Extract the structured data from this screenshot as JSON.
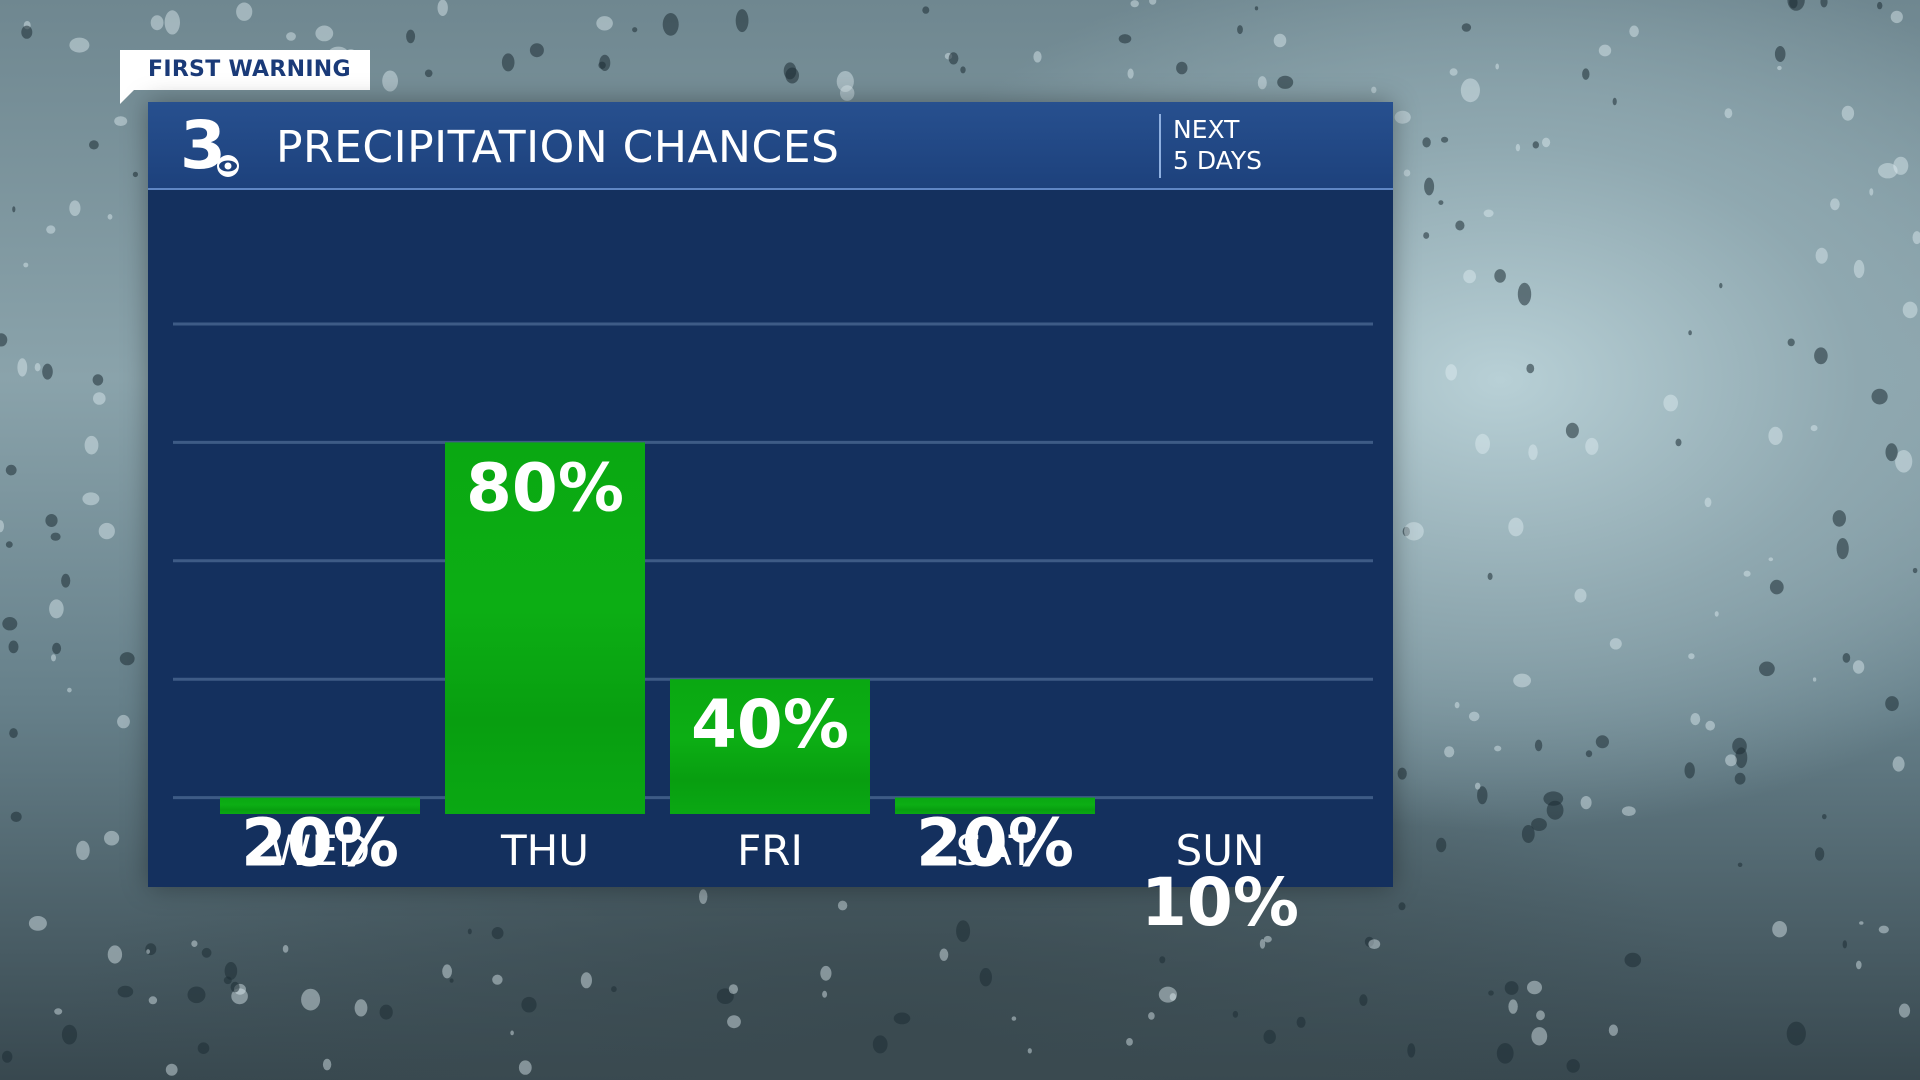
{
  "badge": {
    "label": "FIRST WARNING"
  },
  "header": {
    "logo_text": "3",
    "title": "PRECIPITATION CHANCES",
    "subtitle_line1": "NEXT",
    "subtitle_line2": "5 DAYS"
  },
  "colors": {
    "panel": "#14305e",
    "header": "#27508f",
    "bar": "#0aa313",
    "text": "#ffffff",
    "badge_text": "#1a3a78"
  },
  "chart_data": {
    "type": "bar",
    "categories": [
      "WED",
      "THU",
      "FRI",
      "SAT",
      "SUN"
    ],
    "values": [
      20,
      80,
      40,
      20,
      10
    ],
    "value_labels": [
      "20%",
      "80%",
      "40%",
      "20%",
      "10%"
    ],
    "ylim": [
      0,
      100
    ],
    "grid": true,
    "legend": "none"
  }
}
